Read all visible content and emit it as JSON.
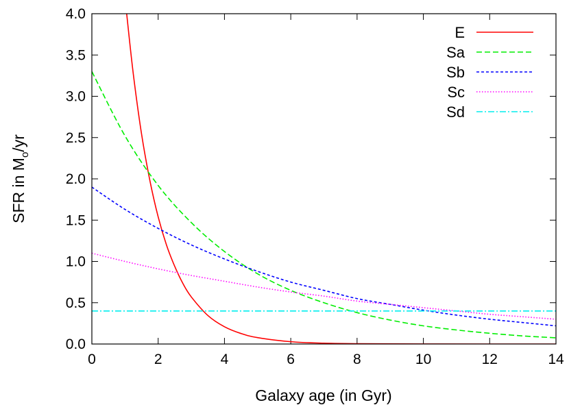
{
  "chart_data": {
    "type": "line",
    "title": "",
    "xlabel": "Galaxy age (in Gyr)",
    "ylabel_main": "SFR in M",
    "ylabel_sub": "o",
    "ylabel_tail": "/yr",
    "xlim": [
      0,
      14
    ],
    "ylim": [
      0,
      4.0
    ],
    "xticks": [
      "0",
      "2",
      "4",
      "6",
      "8",
      "10",
      "12",
      "14"
    ],
    "yticks": [
      "0.0",
      "0.5",
      "1.0",
      "1.5",
      "2.0",
      "2.5",
      "3.0",
      "3.5",
      "4.0"
    ],
    "grid": false,
    "legend_position": "top-right",
    "series": [
      {
        "name": "E",
        "color": "#ff0000",
        "dash": "solid",
        "x": [
          1.05,
          1.25,
          1.5,
          1.75,
          2,
          2.25,
          2.5,
          2.75,
          3,
          3.5,
          4,
          4.5,
          5,
          6,
          7,
          8,
          10,
          14
        ],
        "y": [
          4.0,
          3.27,
          2.54,
          1.98,
          1.54,
          1.2,
          0.94,
          0.73,
          0.57,
          0.345,
          0.209,
          0.127,
          0.077,
          0.028,
          0.01,
          0.004,
          0.0005,
          0
        ]
      },
      {
        "name": "Sa",
        "color": "#00ee00",
        "dash": "dashed",
        "x": [
          0,
          1,
          2,
          3,
          4,
          5,
          6,
          7,
          8,
          9,
          10,
          11,
          12,
          13,
          14
        ],
        "y": [
          3.3,
          2.52,
          1.92,
          1.47,
          1.12,
          0.85,
          0.65,
          0.5,
          0.38,
          0.29,
          0.22,
          0.17,
          0.13,
          0.098,
          0.075
        ]
      },
      {
        "name": "Sb",
        "color": "#0000ff",
        "dash": "short-dashed",
        "x": [
          0,
          1,
          2,
          3,
          4,
          5,
          6,
          7,
          8,
          9,
          10,
          11,
          12,
          13,
          14
        ],
        "y": [
          1.9,
          1.63,
          1.4,
          1.2,
          1.03,
          0.88,
          0.75,
          0.65,
          0.55,
          0.48,
          0.41,
          0.35,
          0.3,
          0.26,
          0.22
        ]
      },
      {
        "name": "Sc",
        "color": "#ff00ff",
        "dash": "dotted",
        "x": [
          0,
          1,
          2,
          3,
          4,
          5,
          6,
          7,
          8,
          9,
          10,
          11,
          12,
          13,
          14
        ],
        "y": [
          1.1,
          1.0,
          0.91,
          0.83,
          0.76,
          0.69,
          0.63,
          0.58,
          0.52,
          0.48,
          0.44,
          0.4,
          0.36,
          0.33,
          0.3
        ]
      },
      {
        "name": "Sd",
        "color": "#00eeee",
        "dash": "dash-dot",
        "x": [
          0,
          14
        ],
        "y": [
          0.4,
          0.4
        ]
      }
    ]
  }
}
